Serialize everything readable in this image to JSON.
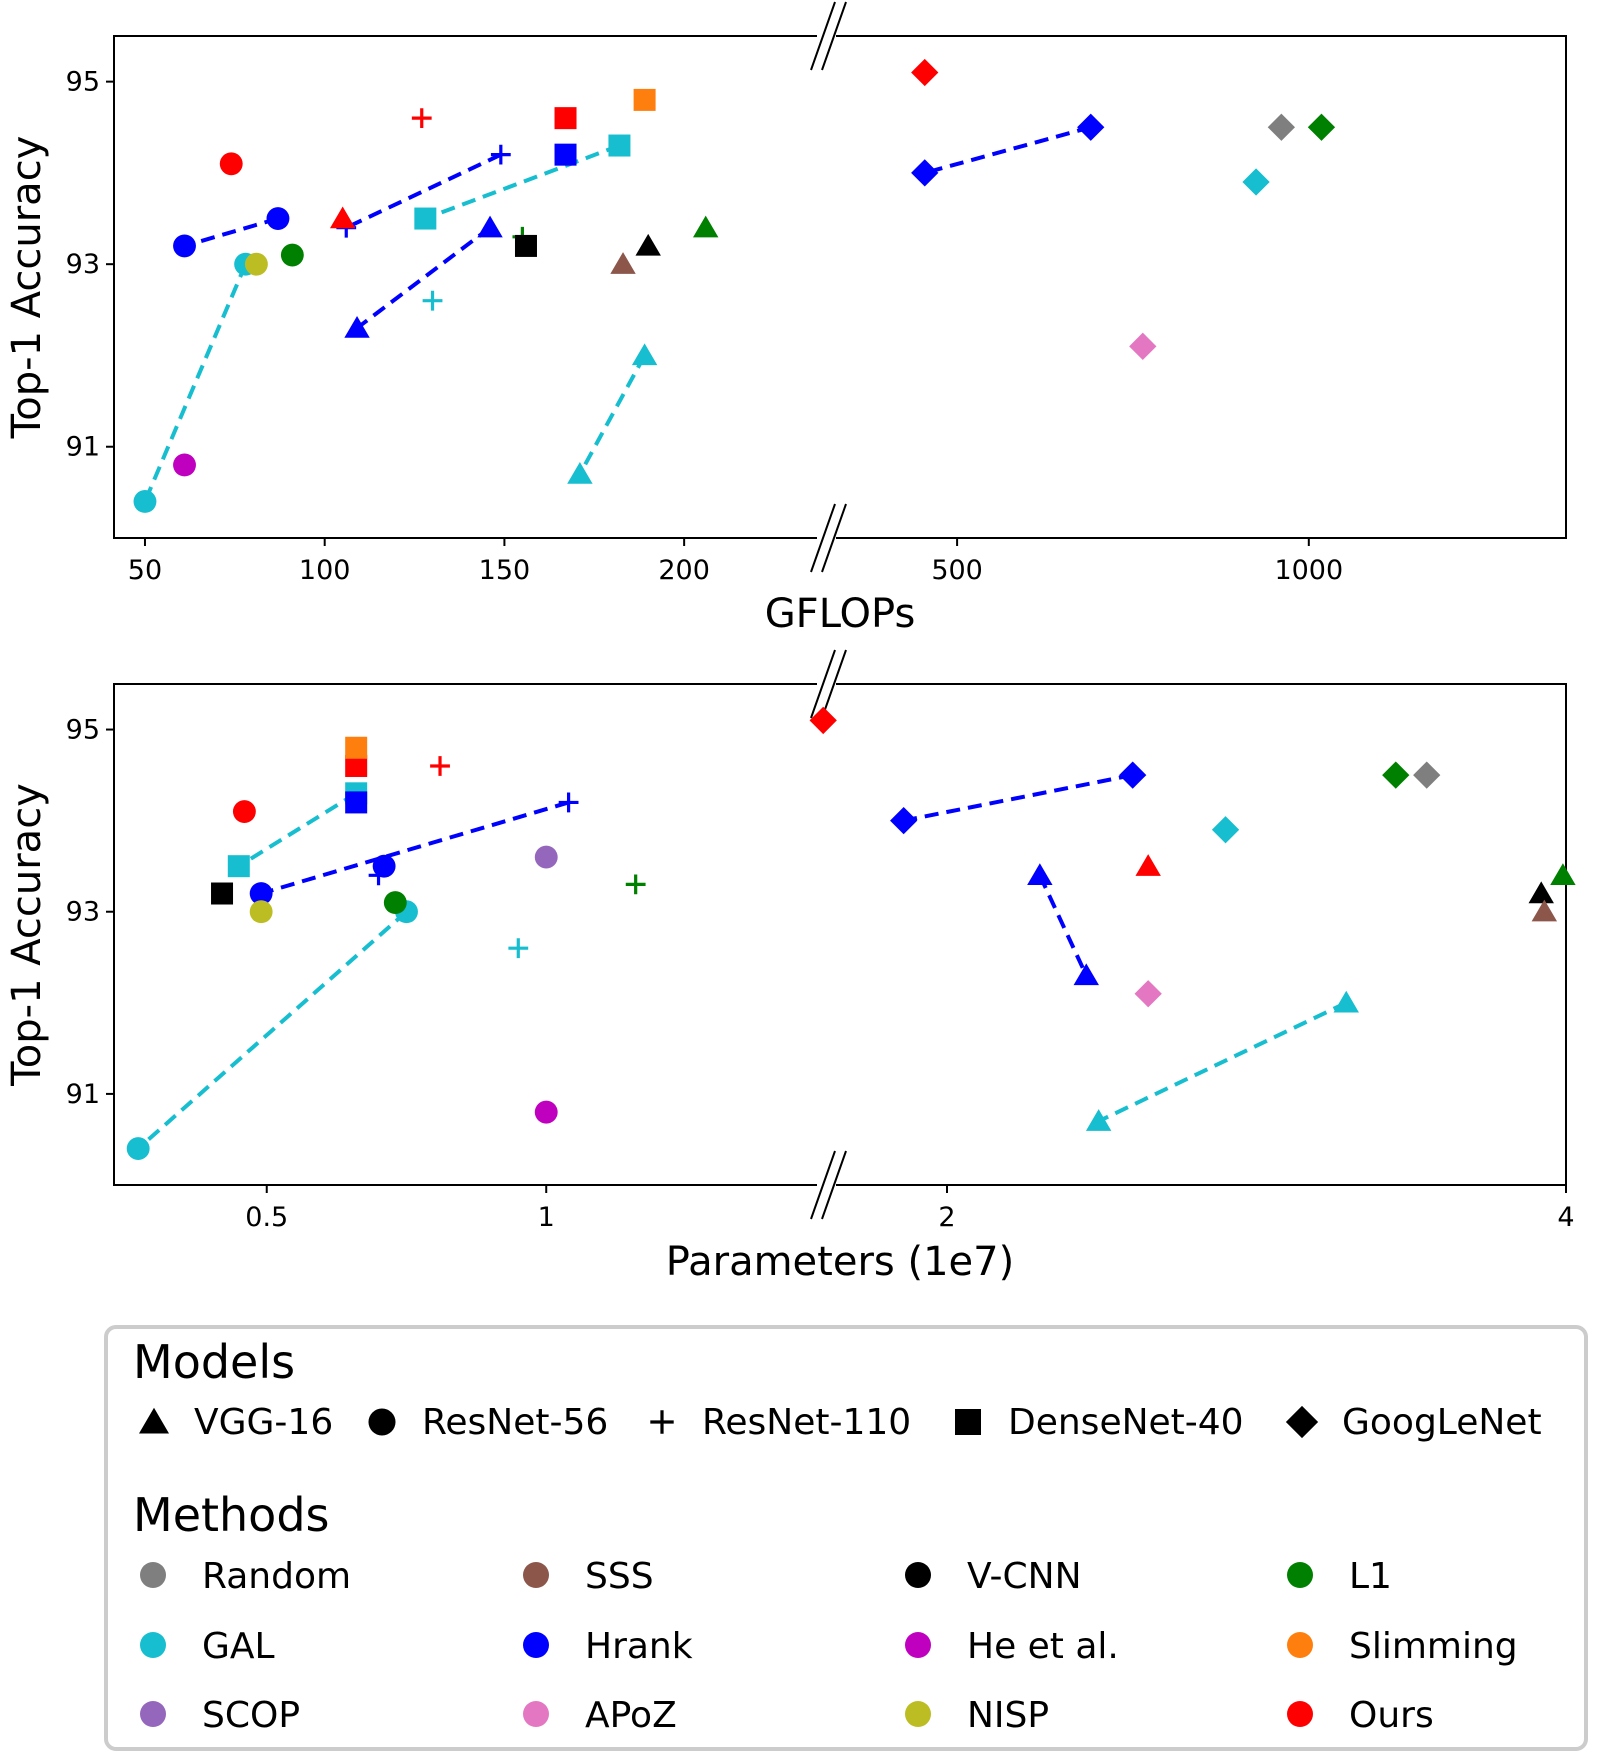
{
  "colors": {
    "Random": "#7f7f7f",
    "SSS": "#8c564b",
    "V-CNN": "#000000",
    "L1": "#008000",
    "GAL": "#17becf",
    "Hrank": "#0000ff",
    "He et al.": "#bf00bf",
    "Slimming": "#ff7f0e",
    "SCOP": "#9467bd",
    "APoZ": "#e377c2",
    "NISP": "#bcbd22",
    "Ours": "#ff0000"
  },
  "legend": {
    "models_title": "Models",
    "models": [
      {
        "label": "VGG-16",
        "marker": "triangle"
      },
      {
        "label": "ResNet-56",
        "marker": "circle"
      },
      {
        "label": "ResNet-110",
        "marker": "plus"
      },
      {
        "label": "DenseNet-40",
        "marker": "square"
      },
      {
        "label": "GoogLeNet",
        "marker": "diamond"
      }
    ],
    "methods_title": "Methods",
    "methods": [
      "Random",
      "SSS",
      "V-CNN",
      "L1",
      "GAL",
      "Hrank",
      "He et al.",
      "Slimming",
      "SCOP",
      "APoZ",
      "NISP",
      "Ours"
    ]
  },
  "chart_data": [
    {
      "type": "scatter",
      "xlabel": "GFLOPs",
      "ylabel": "Top-1 Accuracy",
      "x_axis": "broken",
      "x_segments": [
        {
          "range": [
            45,
            225
          ],
          "ticks": [
            50,
            100,
            150,
            200
          ]
        },
        {
          "range": [
            325,
            1350
          ],
          "ticks": [
            500,
            1000
          ]
        }
      ],
      "ylim": [
        90.0,
        95.5
      ],
      "yticks": [
        91,
        93,
        95
      ],
      "points": [
        {
          "x": 50,
          "y": 90.4,
          "method": "GAL",
          "marker": "circle"
        },
        {
          "x": 78,
          "y": 93.0,
          "method": "GAL",
          "marker": "circle"
        },
        {
          "x": 61,
          "y": 93.2,
          "method": "Hrank",
          "marker": "circle"
        },
        {
          "x": 87,
          "y": 93.5,
          "method": "Hrank",
          "marker": "circle"
        },
        {
          "x": 74,
          "y": 94.1,
          "method": "Ours",
          "marker": "circle"
        },
        {
          "x": 61,
          "y": 90.8,
          "method": "He et al.",
          "marker": "circle"
        },
        {
          "x": 81,
          "y": 93.0,
          "method": "NISP",
          "marker": "circle"
        },
        {
          "x": 91,
          "y": 93.1,
          "method": "L1",
          "marker": "circle"
        },
        {
          "x": 106,
          "y": 93.4,
          "method": "Hrank",
          "marker": "plus"
        },
        {
          "x": 149,
          "y": 94.2,
          "method": "Hrank",
          "marker": "plus"
        },
        {
          "x": 127,
          "y": 94.6,
          "method": "Ours",
          "marker": "plus"
        },
        {
          "x": 130,
          "y": 92.6,
          "method": "GAL",
          "marker": "plus"
        },
        {
          "x": 155,
          "y": 93.3,
          "method": "L1",
          "marker": "plus"
        },
        {
          "x": 105,
          "y": 93.5,
          "method": "Ours",
          "marker": "triangle"
        },
        {
          "x": 109,
          "y": 92.3,
          "method": "Hrank",
          "marker": "triangle"
        },
        {
          "x": 146,
          "y": 93.4,
          "method": "Hrank",
          "marker": "triangle"
        },
        {
          "x": 171,
          "y": 90.7,
          "method": "GAL",
          "marker": "triangle"
        },
        {
          "x": 189,
          "y": 92.0,
          "method": "GAL",
          "marker": "triangle"
        },
        {
          "x": 183,
          "y": 93.0,
          "method": "SSS",
          "marker": "triangle"
        },
        {
          "x": 190,
          "y": 93.2,
          "method": "V-CNN",
          "marker": "triangle"
        },
        {
          "x": 206,
          "y": 93.4,
          "method": "L1",
          "marker": "triangle"
        },
        {
          "x": 128,
          "y": 93.5,
          "method": "GAL",
          "marker": "square"
        },
        {
          "x": 182,
          "y": 94.3,
          "method": "GAL",
          "marker": "square"
        },
        {
          "x": 167,
          "y": 94.2,
          "method": "Hrank",
          "marker": "square"
        },
        {
          "x": 167,
          "y": 94.6,
          "method": "Ours",
          "marker": "square"
        },
        {
          "x": 189,
          "y": 94.8,
          "method": "Slimming",
          "marker": "square"
        },
        {
          "x": 156,
          "y": 93.2,
          "method": "V-CNN",
          "marker": "square"
        },
        {
          "x": 454,
          "y": 94.0,
          "method": "Hrank",
          "marker": "diamond"
        },
        {
          "x": 690,
          "y": 94.5,
          "method": "Hrank",
          "marker": "diamond"
        },
        {
          "x": 454,
          "y": 95.1,
          "method": "Ours",
          "marker": "diamond"
        },
        {
          "x": 925,
          "y": 93.9,
          "method": "GAL",
          "marker": "diamond"
        },
        {
          "x": 961,
          "y": 94.5,
          "method": "Random",
          "marker": "diamond"
        },
        {
          "x": 1018,
          "y": 94.5,
          "method": "L1",
          "marker": "diamond"
        },
        {
          "x": 764,
          "y": 92.1,
          "method": "APoZ",
          "marker": "diamond"
        }
      ],
      "links": [
        {
          "from": [
            78,
            93.0
          ],
          "to": [
            50,
            90.4
          ],
          "method": "GAL"
        },
        {
          "from": [
            87,
            93.5
          ],
          "to": [
            61,
            93.2
          ],
          "method": "Hrank"
        },
        {
          "from": [
            149,
            94.2
          ],
          "to": [
            106,
            93.4
          ],
          "method": "Hrank"
        },
        {
          "from": [
            146,
            93.4
          ],
          "to": [
            109,
            92.3
          ],
          "method": "Hrank"
        },
        {
          "from": [
            189,
            92.0
          ],
          "to": [
            171,
            90.7
          ],
          "method": "GAL"
        },
        {
          "from": [
            182,
            94.3
          ],
          "to": [
            128,
            93.5
          ],
          "method": "GAL"
        },
        {
          "from": [
            690,
            94.5
          ],
          "to": [
            454,
            94.0
          ],
          "method": "Hrank"
        }
      ]
    },
    {
      "type": "scatter",
      "xlabel": "Parameters (1e7)",
      "ylabel": "Top-1 Accuracy",
      "x_axis": "broken",
      "x_segments": [
        {
          "range": [
            0.25,
            1.42
          ],
          "ticks": [
            0.5,
            1
          ]
        },
        {
          "range": [
            1.58,
            4.0
          ],
          "ticks": [
            2,
            4
          ]
        }
      ],
      "ylim": [
        90.0,
        95.5
      ],
      "yticks": [
        91,
        93,
        95
      ],
      "points": [
        {
          "x": 0.27,
          "y": 90.4,
          "method": "GAL",
          "marker": "circle"
        },
        {
          "x": 0.75,
          "y": 93.0,
          "method": "GAL",
          "marker": "circle"
        },
        {
          "x": 0.49,
          "y": 93.2,
          "method": "Hrank",
          "marker": "circle"
        },
        {
          "x": 0.71,
          "y": 93.5,
          "method": "Hrank",
          "marker": "circle"
        },
        {
          "x": 0.46,
          "y": 94.1,
          "method": "Ours",
          "marker": "circle"
        },
        {
          "x": 0.49,
          "y": 93.0,
          "method": "NISP",
          "marker": "circle"
        },
        {
          "x": 0.73,
          "y": 93.1,
          "method": "L1",
          "marker": "circle"
        },
        {
          "x": 1.0,
          "y": 93.6,
          "method": "SCOP",
          "marker": "circle"
        },
        {
          "x": 1.0,
          "y": 90.8,
          "method": "He et al.",
          "marker": "circle"
        },
        {
          "x": 0.7,
          "y": 93.4,
          "method": "Hrank",
          "marker": "plus"
        },
        {
          "x": 1.04,
          "y": 94.2,
          "method": "Hrank",
          "marker": "plus"
        },
        {
          "x": 0.81,
          "y": 94.6,
          "method": "Ours",
          "marker": "plus"
        },
        {
          "x": 0.95,
          "y": 92.6,
          "method": "GAL",
          "marker": "plus"
        },
        {
          "x": 1.16,
          "y": 93.3,
          "method": "L1",
          "marker": "plus"
        },
        {
          "x": 2.3,
          "y": 93.4,
          "method": "Hrank",
          "marker": "triangle"
        },
        {
          "x": 2.45,
          "y": 92.3,
          "method": "Hrank",
          "marker": "triangle"
        },
        {
          "x": 2.49,
          "y": 90.7,
          "method": "GAL",
          "marker": "triangle"
        },
        {
          "x": 3.29,
          "y": 92.0,
          "method": "GAL",
          "marker": "triangle"
        },
        {
          "x": 2.65,
          "y": 93.5,
          "method": "Ours",
          "marker": "triangle"
        },
        {
          "x": 3.92,
          "y": 93.2,
          "method": "V-CNN",
          "marker": "triangle"
        },
        {
          "x": 3.93,
          "y": 93.0,
          "method": "SSS",
          "marker": "triangle"
        },
        {
          "x": 3.99,
          "y": 93.4,
          "method": "L1",
          "marker": "triangle"
        },
        {
          "x": 0.42,
          "y": 93.2,
          "method": "V-CNN",
          "marker": "square"
        },
        {
          "x": 0.45,
          "y": 93.5,
          "method": "GAL",
          "marker": "square"
        },
        {
          "x": 0.66,
          "y": 94.3,
          "method": "GAL",
          "marker": "square"
        },
        {
          "x": 0.66,
          "y": 94.2,
          "method": "Hrank",
          "marker": "square"
        },
        {
          "x": 0.66,
          "y": 94.6,
          "method": "Ours",
          "marker": "square"
        },
        {
          "x": 0.66,
          "y": 94.8,
          "method": "Slimming",
          "marker": "square"
        },
        {
          "x": 1.86,
          "y": 94.0,
          "method": "Hrank",
          "marker": "diamond"
        },
        {
          "x": 2.6,
          "y": 94.5,
          "method": "Hrank",
          "marker": "diamond"
        },
        {
          "x": 1.6,
          "y": 95.1,
          "method": "Ours",
          "marker": "diamond"
        },
        {
          "x": 2.9,
          "y": 93.9,
          "method": "GAL",
          "marker": "diamond"
        },
        {
          "x": 3.45,
          "y": 94.5,
          "method": "L1",
          "marker": "diamond"
        },
        {
          "x": 3.55,
          "y": 94.5,
          "method": "Random",
          "marker": "diamond"
        },
        {
          "x": 2.65,
          "y": 92.1,
          "method": "APoZ",
          "marker": "diamond"
        }
      ],
      "links": [
        {
          "from": [
            0.75,
            93.0
          ],
          "to": [
            0.27,
            90.4
          ],
          "method": "GAL"
        },
        {
          "from": [
            0.66,
            94.3
          ],
          "to": [
            0.45,
            93.5
          ],
          "method": "GAL"
        },
        {
          "from": [
            1.04,
            94.2
          ],
          "to": [
            0.49,
            93.2
          ],
          "method": "Hrank"
        },
        {
          "from": [
            2.6,
            94.5
          ],
          "to": [
            1.86,
            94.0
          ],
          "method": "Hrank"
        },
        {
          "from": [
            2.3,
            93.4
          ],
          "to": [
            2.45,
            92.3
          ],
          "method": "Hrank"
        },
        {
          "from": [
            3.29,
            92.0
          ],
          "to": [
            2.49,
            90.7
          ],
          "method": "GAL"
        }
      ]
    }
  ]
}
